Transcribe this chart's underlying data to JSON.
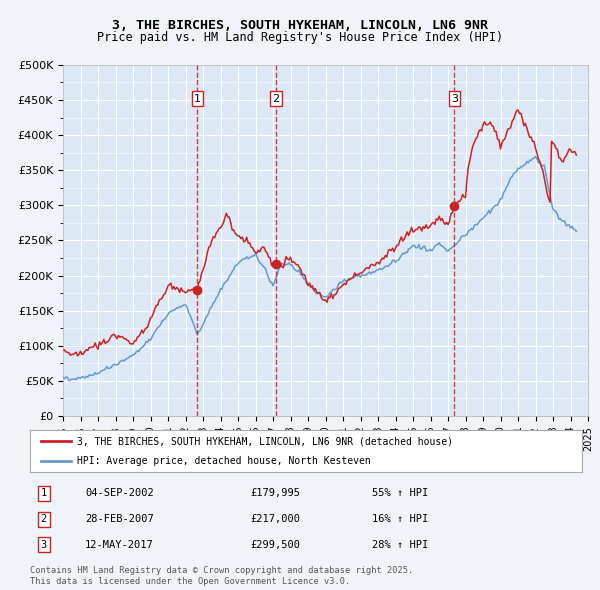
{
  "title": "3, THE BIRCHES, SOUTH HYKEHAM, LINCOLN, LN6 9NR",
  "subtitle": "Price paid vs. HM Land Registry's House Price Index (HPI)",
  "hpi_label": "HPI: Average price, detached house, North Kesteven",
  "property_label": "3, THE BIRCHES, SOUTH HYKEHAM, LINCOLN, LN6 9NR (detached house)",
  "footer1": "Contains HM Land Registry data © Crown copyright and database right 2025.",
  "footer2": "This data is licensed under the Open Government Licence v3.0.",
  "sales": [
    {
      "num": 1,
      "date": "04-SEP-2002",
      "price": "£179,995",
      "pct": "55% ↑ HPI",
      "year": 2002.67
    },
    {
      "num": 2,
      "date": "28-FEB-2007",
      "price": "£217,000",
      "pct": "16% ↑ HPI",
      "year": 2007.17
    },
    {
      "num": 3,
      "date": "12-MAY-2017",
      "price": "£299,500",
      "pct": "28% ↑ HPI",
      "year": 2017.37
    }
  ],
  "sale_marker_values": [
    179995,
    217000,
    299500
  ],
  "sale_marker_years": [
    2002.67,
    2007.17,
    2017.37
  ],
  "bg_color": "#f0f4f8",
  "plot_bg": "#dce8f5",
  "grid_color": "#ffffff",
  "red_color": "#cc2222",
  "blue_color": "#6699cc",
  "ylim": [
    0,
    500000
  ],
  "xlim": [
    1995,
    2025
  ],
  "xticks": [
    1995,
    1996,
    1997,
    1998,
    1999,
    2000,
    2001,
    2002,
    2003,
    2004,
    2005,
    2006,
    2007,
    2008,
    2009,
    2010,
    2011,
    2012,
    2013,
    2014,
    2015,
    2016,
    2017,
    2018,
    2019,
    2020,
    2021,
    2022,
    2023,
    2024,
    2025
  ]
}
